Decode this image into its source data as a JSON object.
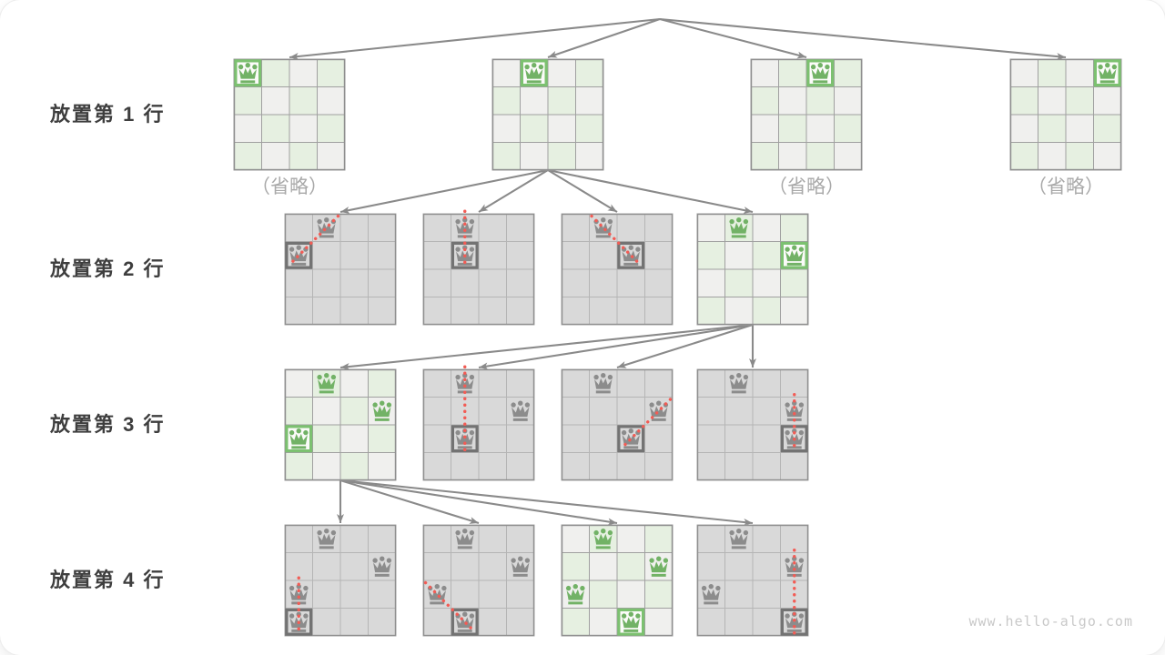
{
  "watermark": "www.hello-algo.com",
  "omitted_label": "（省略）",
  "colors": {
    "queen_green": "#72b266",
    "queen_gray": "#8c8c8c",
    "highlight_green": "#7cc170",
    "highlight_gray": "#737373",
    "highlight_green_fill": "#fbfbf9",
    "cell_light_green": "#e6f0e1",
    "cell_light_gray": "#f0f0ee",
    "cell_dark_gray": "#d9d9d9",
    "grid_light": "#a0a0a0",
    "grid_gray": "#b5b5b5",
    "board_border": "#8f8f8f",
    "arrow": "#8a8a8a",
    "conflict_red": "#f25c55",
    "row_label_text": "#3e3e3e",
    "omitted_text": "#a9a9a9",
    "watermark_text": "#c9c9c9"
  },
  "levels": [
    {
      "label": "放置第 1 行",
      "boards": [
        {
          "id": "0-0",
          "style": "light",
          "queens": [
            {
              "r": 0,
              "c": 0,
              "color": "green",
              "highlight": true
            }
          ],
          "omitted": true
        },
        {
          "id": "0-1",
          "style": "light",
          "queens": [
            {
              "r": 0,
              "c": 1,
              "color": "green",
              "highlight": true
            }
          ]
        },
        {
          "id": "0-2",
          "style": "light",
          "queens": [
            {
              "r": 0,
              "c": 2,
              "color": "green",
              "highlight": true
            }
          ],
          "omitted": true
        },
        {
          "id": "0-3",
          "style": "light",
          "queens": [
            {
              "r": 0,
              "c": 3,
              "color": "green",
              "highlight": true
            }
          ],
          "omitted": true
        }
      ]
    },
    {
      "label": "放置第 2 行",
      "boards": [
        {
          "id": "1-0",
          "style": "gray",
          "queens": [
            {
              "r": 0,
              "c": 1,
              "color": "gray"
            },
            {
              "r": 1,
              "c": 0,
              "color": "gray",
              "highlight": true
            }
          ],
          "conflict": {
            "from": [
              0,
              1
            ],
            "to": [
              1,
              0
            ]
          }
        },
        {
          "id": "1-1",
          "style": "gray",
          "queens": [
            {
              "r": 0,
              "c": 1,
              "color": "gray"
            },
            {
              "r": 1,
              "c": 1,
              "color": "gray",
              "highlight": true
            }
          ],
          "conflict": {
            "from": [
              0,
              1
            ],
            "to": [
              1,
              1
            ]
          }
        },
        {
          "id": "1-2",
          "style": "gray",
          "queens": [
            {
              "r": 0,
              "c": 1,
              "color": "gray"
            },
            {
              "r": 1,
              "c": 2,
              "color": "gray",
              "highlight": true
            }
          ],
          "conflict": {
            "from": [
              0,
              1
            ],
            "to": [
              1,
              2
            ]
          }
        },
        {
          "id": "1-3",
          "style": "light",
          "queens": [
            {
              "r": 0,
              "c": 1,
              "color": "green"
            },
            {
              "r": 1,
              "c": 3,
              "color": "green",
              "highlight": true
            }
          ]
        }
      ]
    },
    {
      "label": "放置第 3 行",
      "boards": [
        {
          "id": "2-0",
          "style": "light",
          "queens": [
            {
              "r": 0,
              "c": 1,
              "color": "green"
            },
            {
              "r": 1,
              "c": 3,
              "color": "green"
            },
            {
              "r": 2,
              "c": 0,
              "color": "green",
              "highlight": true
            }
          ]
        },
        {
          "id": "2-1",
          "style": "gray",
          "queens": [
            {
              "r": 0,
              "c": 1,
              "color": "gray"
            },
            {
              "r": 1,
              "c": 3,
              "color": "gray"
            },
            {
              "r": 2,
              "c": 1,
              "color": "gray",
              "highlight": true
            }
          ],
          "conflict": {
            "from": [
              0,
              1
            ],
            "to": [
              2,
              1
            ]
          }
        },
        {
          "id": "2-2",
          "style": "gray",
          "queens": [
            {
              "r": 0,
              "c": 1,
              "color": "gray"
            },
            {
              "r": 1,
              "c": 3,
              "color": "gray"
            },
            {
              "r": 2,
              "c": 2,
              "color": "gray",
              "highlight": true
            }
          ],
          "conflict": {
            "from": [
              1,
              3
            ],
            "to": [
              2,
              2
            ]
          }
        },
        {
          "id": "2-3",
          "style": "gray",
          "queens": [
            {
              "r": 0,
              "c": 1,
              "color": "gray"
            },
            {
              "r": 1,
              "c": 3,
              "color": "gray"
            },
            {
              "r": 2,
              "c": 3,
              "color": "gray",
              "highlight": true
            }
          ],
          "conflict": {
            "from": [
              1,
              3
            ],
            "to": [
              2,
              3
            ]
          }
        }
      ]
    },
    {
      "label": "放置第 4 行",
      "boards": [
        {
          "id": "3-0",
          "style": "gray",
          "queens": [
            {
              "r": 0,
              "c": 1,
              "color": "gray"
            },
            {
              "r": 1,
              "c": 3,
              "color": "gray"
            },
            {
              "r": 2,
              "c": 0,
              "color": "gray"
            },
            {
              "r": 3,
              "c": 0,
              "color": "gray",
              "highlight": true
            }
          ],
          "conflict": {
            "from": [
              2,
              0
            ],
            "to": [
              3,
              0
            ]
          }
        },
        {
          "id": "3-1",
          "style": "gray",
          "queens": [
            {
              "r": 0,
              "c": 1,
              "color": "gray"
            },
            {
              "r": 1,
              "c": 3,
              "color": "gray"
            },
            {
              "r": 2,
              "c": 0,
              "color": "gray"
            },
            {
              "r": 3,
              "c": 1,
              "color": "gray",
              "highlight": true
            }
          ],
          "conflict": {
            "from": [
              2,
              0
            ],
            "to": [
              3,
              1
            ]
          }
        },
        {
          "id": "3-2",
          "style": "light",
          "queens": [
            {
              "r": 0,
              "c": 1,
              "color": "green"
            },
            {
              "r": 1,
              "c": 3,
              "color": "green"
            },
            {
              "r": 2,
              "c": 0,
              "color": "green"
            },
            {
              "r": 3,
              "c": 2,
              "color": "green",
              "highlight": true
            }
          ]
        },
        {
          "id": "3-3",
          "style": "gray",
          "queens": [
            {
              "r": 0,
              "c": 1,
              "color": "gray"
            },
            {
              "r": 1,
              "c": 3,
              "color": "gray"
            },
            {
              "r": 2,
              "c": 0,
              "color": "gray"
            },
            {
              "r": 3,
              "c": 3,
              "color": "gray",
              "highlight": true
            }
          ],
          "conflict": {
            "from": [
              1,
              3
            ],
            "to": [
              3,
              3
            ]
          }
        }
      ]
    }
  ],
  "edges": [
    [
      "root",
      "0-0"
    ],
    [
      "root",
      "0-1"
    ],
    [
      "root",
      "0-2"
    ],
    [
      "root",
      "0-3"
    ],
    [
      "0-1",
      "1-0"
    ],
    [
      "0-1",
      "1-1"
    ],
    [
      "0-1",
      "1-2"
    ],
    [
      "0-1",
      "1-3"
    ],
    [
      "1-3",
      "2-0"
    ],
    [
      "1-3",
      "2-1"
    ],
    [
      "1-3",
      "2-2"
    ],
    [
      "1-3",
      "2-3"
    ],
    [
      "2-0",
      "3-0"
    ],
    [
      "2-0",
      "3-1"
    ],
    [
      "2-0",
      "3-2"
    ],
    [
      "2-0",
      "3-3"
    ]
  ]
}
